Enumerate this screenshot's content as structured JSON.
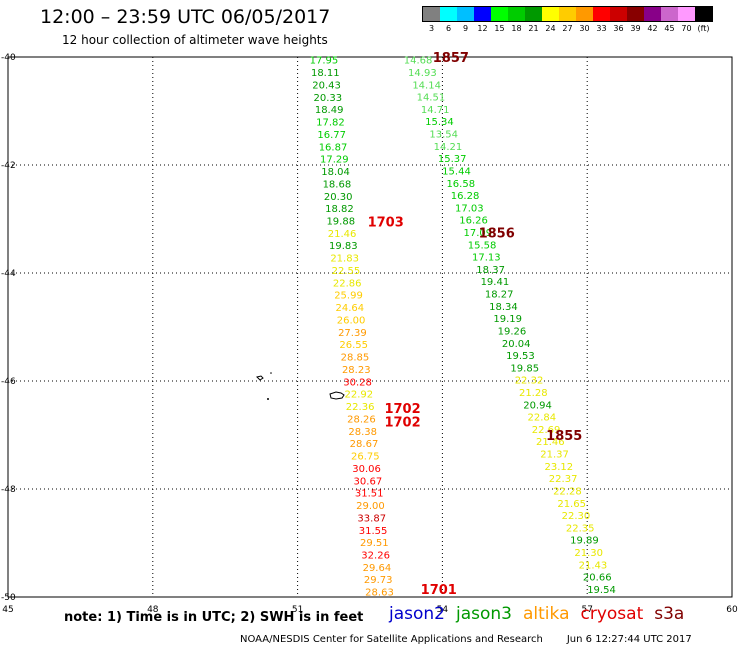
{
  "header": {
    "title": "12:00 – 23:59 UTC 06/05/2017",
    "subtitle": "12 hour collection of altimeter wave heights"
  },
  "legend": {
    "colors": [
      "#808080",
      "#00ffff",
      "#00bfff",
      "#0000ff",
      "#00ff00",
      "#00cc00",
      "#009900",
      "#ffff00",
      "#ffcc00",
      "#ff9900",
      "#ff0000",
      "#cc0000",
      "#880000",
      "#880088",
      "#cc66cc",
      "#ff99ff",
      "#000000"
    ],
    "labels": [
      "3",
      "6",
      "9",
      "12",
      "15",
      "18",
      "21",
      "24",
      "27",
      "30",
      "33",
      "36",
      "39",
      "42",
      "45",
      "70",
      "(ft)"
    ]
  },
  "map": {
    "x_range": [
      45,
      60
    ],
    "y_range": [
      -40,
      -50
    ],
    "x_ticks": [
      45,
      48,
      51,
      54,
      57,
      60
    ],
    "x_tick_labels": [
      "45",
      "48",
      "51",
      "54",
      "57",
      "60"
    ],
    "y_ticks": [
      -40,
      -42,
      -44,
      -46,
      -48,
      -50
    ],
    "y_tick_labels": [
      "-40",
      "-42",
      "-44",
      "-46",
      "-48",
      "-50"
    ],
    "grid": true,
    "swh_unit": "feet",
    "time_unit": "UTC",
    "tracks": [
      {
        "lon_start": 51.25,
        "lon_end": 52.4,
        "lat_start": -40.05,
        "lat_end": -49.9,
        "values": [
          "17.95",
          "18.11",
          "20.43",
          "20.33",
          "18.49",
          "17.82",
          "16.77",
          "16.87",
          "17.29",
          "18.04",
          "18.68",
          "20.30",
          "18.82",
          "19.88",
          "21.46",
          "19.83",
          "21.83",
          "22.55",
          "22.86",
          "25.99",
          "24.64",
          "26.00",
          "27.39",
          "26.55",
          "28.85",
          "28.23",
          "30.28",
          "22.92",
          "22.36",
          "28.26",
          "28.38",
          "28.67",
          "26.75",
          "30.06",
          "30.67",
          "31.51",
          "29.00",
          "33.87",
          "31.55",
          "29.51",
          "32.26",
          "29.64",
          "29.73",
          "28.63"
        ]
      },
      {
        "lon_start": 53.2,
        "lon_end": 57.0,
        "lat_start": -40.05,
        "lat_end": -49.85,
        "values": [
          "14.68",
          "14.93",
          "14.14",
          "14.51",
          "14.71",
          "15.34",
          "13.54",
          "14.21",
          "15.37",
          "15.44",
          "16.58",
          "16.28",
          "17.03",
          "16.26",
          "17.09",
          "15.58",
          "17.13",
          "18.37",
          "19.41",
          "18.27",
          "18.34",
          "19.19",
          "19.26",
          "20.04",
          "19.53",
          "19.85",
          "22.32",
          "21.28",
          "20.94",
          "22.84",
          "22.69",
          "21.46",
          "21.37",
          "23.12",
          "22.37",
          "22.28",
          "21.65",
          "22.30",
          "22.35",
          "19.89",
          "21.30",
          "21.43",
          "20.66",
          "19.54"
        ]
      }
    ],
    "time_labels": [
      {
        "time": "1857",
        "lon": 53.8,
        "lat": -40.0,
        "sat": "s3a"
      },
      {
        "time": "1856",
        "lon": 54.75,
        "lat": -43.25,
        "sat": "s3a"
      },
      {
        "time": "1855",
        "lon": 56.15,
        "lat": -47.0,
        "sat": "s3a"
      },
      {
        "time": "1703",
        "lon": 52.45,
        "lat": -43.05,
        "sat": "cryosat"
      },
      {
        "time": "1702",
        "lon": 52.8,
        "lat": -46.5,
        "sat": "cryosat"
      },
      {
        "time": "1702",
        "lon": 52.8,
        "lat": -46.75,
        "sat": "cryosat"
      },
      {
        "time": "1701",
        "lon": 53.55,
        "lat": -49.85,
        "sat": "cryosat"
      }
    ],
    "label_colors": {
      "s3a": "#800000",
      "cryosat": "#e00000"
    }
  },
  "footer": {
    "note": "note: 1) Time is in UTC; 2) SWH is in feet",
    "satellites": [
      {
        "name": "jason2",
        "color": "#0000cc"
      },
      {
        "name": "jason3",
        "color": "#009900"
      },
      {
        "name": "altika",
        "color": "#ff9900"
      },
      {
        "name": "cryosat",
        "color": "#e00000"
      },
      {
        "name": "s3a",
        "color": "#800000"
      }
    ],
    "credit": "NOAA/NESDIS Center for Satellite Applications and Research",
    "timestamp": "Jun  6 12:27:44 UTC 2017"
  }
}
